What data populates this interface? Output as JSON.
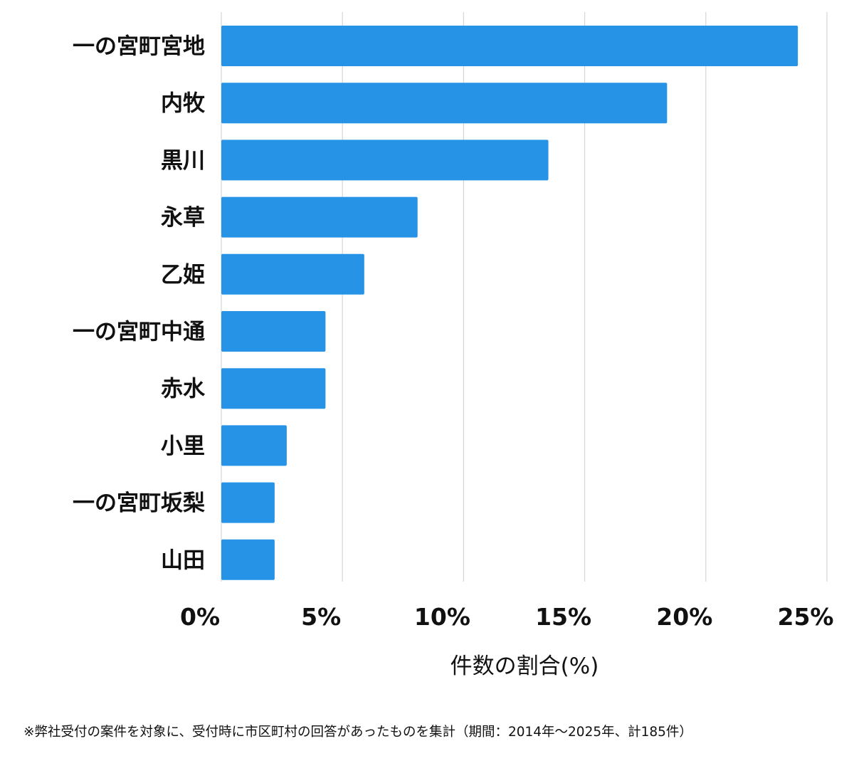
{
  "chart_data": {
    "type": "bar",
    "orientation": "horizontal",
    "categories": [
      "一の宮町宮地",
      "内牧",
      "黒川",
      "永草",
      "乙姫",
      "一の宮町中通",
      "赤水",
      "小里",
      "一の宮町坂梨",
      "山田"
    ],
    "values": [
      23.8,
      18.4,
      13.5,
      8.1,
      5.9,
      4.3,
      4.3,
      2.7,
      2.2,
      2.2
    ],
    "xlim": [
      0,
      25
    ],
    "xticks": [
      0,
      5,
      10,
      15,
      20,
      25
    ],
    "xtick_labels": [
      "0%",
      "5%",
      "10%",
      "15%",
      "20%",
      "25%"
    ],
    "xlabel": "件数の割合(%)",
    "ylabel": "",
    "title": "",
    "bar_color": "#2793e6",
    "grid": "vertical"
  },
  "footnote": "※弊社受付の案件を対象に、受付時に市区町村の回答があったものを集計（期間：2014年〜2025年、計185件）"
}
